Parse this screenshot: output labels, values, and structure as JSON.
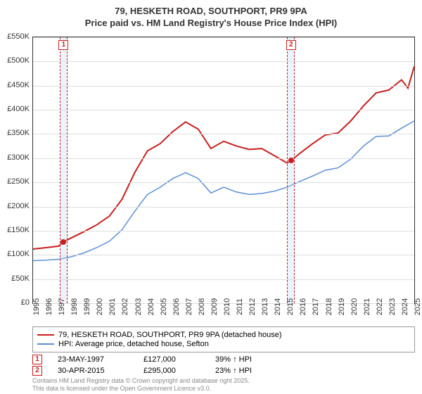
{
  "title": {
    "line1": "79, HESKETH ROAD, SOUTHPORT, PR9 9PA",
    "line2": "Price paid vs. HM Land Registry's House Price Index (HPI)"
  },
  "chart": {
    "type": "line",
    "background_color": "#ffffff",
    "grid_color": "#dddddd",
    "axis_color": "#333333",
    "ylim": [
      0,
      550000
    ],
    "ytick_step": 50000,
    "ytick_format_prefix": "£",
    "ytick_format_suffix": "K",
    "ytick_labels": [
      "£0",
      "£50K",
      "£100K",
      "£150K",
      "£200K",
      "£250K",
      "£300K",
      "£350K",
      "£400K",
      "£450K",
      "£500K",
      "£550K"
    ],
    "x_years": [
      1995,
      1996,
      1997,
      1998,
      1999,
      2000,
      2001,
      2002,
      2003,
      2004,
      2005,
      2006,
      2007,
      2008,
      2009,
      2010,
      2011,
      2012,
      2013,
      2014,
      2015,
      2016,
      2017,
      2018,
      2019,
      2020,
      2021,
      2022,
      2023,
      2024,
      2025
    ],
    "band_color": "rgba(200,220,240,0.35)",
    "band_dash_color": "#c81e1e",
    "sale_bands": [
      {
        "start_year": 1997.1,
        "end_year": 1997.7
      },
      {
        "start_year": 2015.0,
        "end_year": 2015.6
      }
    ],
    "series": [
      {
        "name": "price_paid",
        "label": "79, HESKETH ROAD, SOUTHPORT, PR9 9PA (detached house)",
        "color": "#c81e1e",
        "line_width": 2,
        "data": [
          [
            1995,
            112000
          ],
          [
            1996,
            115000
          ],
          [
            1997,
            118000
          ],
          [
            1997.4,
            127000
          ],
          [
            1998,
            135000
          ],
          [
            1999,
            148000
          ],
          [
            2000,
            162000
          ],
          [
            2001,
            180000
          ],
          [
            2002,
            215000
          ],
          [
            2003,
            270000
          ],
          [
            2004,
            315000
          ],
          [
            2005,
            330000
          ],
          [
            2006,
            355000
          ],
          [
            2007,
            375000
          ],
          [
            2008,
            360000
          ],
          [
            2009,
            320000
          ],
          [
            2010,
            335000
          ],
          [
            2011,
            325000
          ],
          [
            2012,
            318000
          ],
          [
            2013,
            320000
          ],
          [
            2014,
            305000
          ],
          [
            2015,
            290000
          ],
          [
            2015.3,
            295000
          ],
          [
            2016,
            310000
          ],
          [
            2017,
            330000
          ],
          [
            2018,
            348000
          ],
          [
            2019,
            352000
          ],
          [
            2020,
            377000
          ],
          [
            2021,
            408000
          ],
          [
            2022,
            435000
          ],
          [
            2023,
            441000
          ],
          [
            2024,
            462000
          ],
          [
            2024.5,
            445000
          ],
          [
            2025,
            490000
          ]
        ]
      },
      {
        "name": "hpi",
        "label": "HPI: Average price, detached house, Sefton",
        "color": "#5b8fd6",
        "line_width": 1.5,
        "data": [
          [
            1995,
            88000
          ],
          [
            1996,
            89000
          ],
          [
            1997,
            91000
          ],
          [
            1998,
            96000
          ],
          [
            1999,
            104000
          ],
          [
            2000,
            115000
          ],
          [
            2001,
            128000
          ],
          [
            2002,
            152000
          ],
          [
            2003,
            190000
          ],
          [
            2004,
            225000
          ],
          [
            2005,
            240000
          ],
          [
            2006,
            258000
          ],
          [
            2007,
            270000
          ],
          [
            2008,
            258000
          ],
          [
            2009,
            228000
          ],
          [
            2010,
            240000
          ],
          [
            2011,
            230000
          ],
          [
            2012,
            225000
          ],
          [
            2013,
            227000
          ],
          [
            2014,
            232000
          ],
          [
            2015,
            240000
          ],
          [
            2016,
            252000
          ],
          [
            2017,
            263000
          ],
          [
            2018,
            275000
          ],
          [
            2019,
            280000
          ],
          [
            2020,
            298000
          ],
          [
            2021,
            325000
          ],
          [
            2022,
            345000
          ],
          [
            2023,
            346000
          ],
          [
            2024,
            362000
          ],
          [
            2025,
            377000
          ]
        ]
      }
    ],
    "sale_markers": [
      {
        "num": "1",
        "year": 1997.4,
        "value": 127000
      },
      {
        "num": "2",
        "year": 2015.3,
        "value": 295000
      }
    ],
    "label_fontsize": 11,
    "title_fontsize": 13
  },
  "legend": {
    "items": [
      {
        "color": "#c81e1e",
        "label": "79, HESKETH ROAD, SOUTHPORT, PR9 9PA (detached house)"
      },
      {
        "color": "#5b8fd6",
        "label": "HPI: Average price, detached house, Sefton"
      }
    ]
  },
  "sales": [
    {
      "num": "1",
      "date": "23-MAY-1997",
      "price": "£127,000",
      "diff": "39% ↑ HPI"
    },
    {
      "num": "2",
      "date": "30-APR-2015",
      "price": "£295,000",
      "diff": "23% ↑ HPI"
    }
  ],
  "attribution": {
    "line1": "Contains HM Land Registry data © Crown copyright and database right 2025.",
    "line2": "This data is licensed under the Open Government Licence v3.0."
  }
}
